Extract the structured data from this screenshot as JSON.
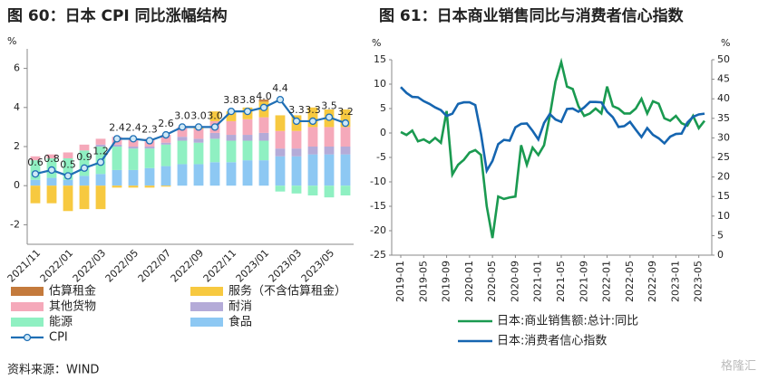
{
  "chart_data": [
    {
      "type": "bar",
      "stacked": true,
      "title": "图 60：日本 CPI 同比涨幅结构",
      "y_label": "%",
      "categories": [
        "2021/11",
        null,
        "2022/01",
        null,
        "2022/03",
        null,
        "2022/05",
        null,
        "2022/07",
        null,
        "2022/09",
        null,
        "2022/11",
        null,
        "2023/01",
        null,
        "2023/03",
        null,
        "2023/05",
        null
      ],
      "ylim": [
        -3,
        7
      ],
      "yticks": [
        -2,
        0,
        2,
        4,
        6
      ],
      "series": [
        {
          "name": "估算租金",
          "color": "#c47a3c",
          "values": [
            0,
            0,
            0,
            0,
            0,
            0,
            0,
            0,
            0,
            0,
            0,
            0,
            0,
            0,
            0.1,
            0,
            0,
            0,
            0,
            0
          ]
        },
        {
          "name": "服务（不含估算租金）",
          "color": "#f7c940",
          "values": [
            -0.9,
            -0.9,
            -1.3,
            -1.2,
            -1.2,
            -0.1,
            -0.1,
            -0.1,
            -0.05,
            0,
            0.1,
            0.5,
            0.5,
            0.6,
            0.8,
            0.8,
            0.8,
            1.0,
            0.9,
            0.9
          ]
        },
        {
          "name": "其他货物",
          "color": "#f5a9ba",
          "values": [
            0.2,
            0.2,
            0.3,
            0.3,
            0.3,
            0.4,
            0.4,
            0.4,
            0.4,
            0.5,
            0.5,
            0.6,
            0.7,
            0.8,
            0.8,
            0.9,
            0.9,
            1.0,
            1.0,
            1.0
          ]
        },
        {
          "name": "耐消",
          "color": "#b4abd8",
          "values": [
            0,
            0,
            0,
            0,
            0.1,
            0.1,
            0.1,
            0.1,
            0.1,
            0.2,
            0.2,
            0.3,
            0.3,
            0.3,
            0.4,
            0.4,
            0.4,
            0.4,
            0.4,
            0.4
          ]
        },
        {
          "name": "能源",
          "color": "#8ff0c2",
          "values": [
            1.0,
            1.0,
            1.1,
            1.3,
            1.4,
            1.2,
            1.1,
            1.0,
            1.1,
            1.2,
            1.1,
            1.2,
            1.1,
            1.0,
            1.0,
            -0.3,
            -0.4,
            -0.5,
            -0.6,
            -0.5
          ]
        },
        {
          "name": "食品",
          "color": "#8dc8f3",
          "values": [
            0.3,
            0.4,
            0.3,
            0.5,
            0.6,
            0.8,
            0.8,
            0.9,
            1.0,
            1.1,
            1.1,
            1.2,
            1.2,
            1.3,
            1.3,
            1.5,
            1.5,
            1.6,
            1.6,
            1.6
          ]
        },
        {
          "name": "CPI",
          "type": "line",
          "color": "#1f6fb5",
          "values": [
            0.6,
            0.8,
            0.5,
            0.9,
            1.2,
            2.4,
            2.4,
            2.3,
            2.6,
            3.0,
            3.0,
            3.0,
            3.8,
            3.8,
            4.0,
            4.4,
            3.3,
            3.3,
            3.5,
            3.2
          ],
          "value_labels": [
            "0.6",
            "0.8",
            "0.5",
            "0.9",
            "1.2",
            "2.4",
            "2.4",
            "2.3",
            "2.6",
            "3.0",
            "3.0",
            "3.0",
            "3.8",
            "3.8",
            "4.0",
            "4.4",
            "3.3",
            "3.3",
            "3.5",
            "3.2"
          ]
        }
      ]
    },
    {
      "type": "line",
      "title": "图 61：日本商业销售同比与消费者信心指数",
      "y_label": "%",
      "y2_label": "%",
      "categories": [
        "2019-01",
        null,
        null,
        null,
        "2019-05",
        null,
        null,
        null,
        "2019-09",
        null,
        null,
        null,
        "2020-01",
        null,
        null,
        null,
        "2020-05",
        null,
        null,
        null,
        "2020-09",
        null,
        null,
        null,
        "2021-01",
        null,
        null,
        null,
        "2021-05",
        null,
        null,
        null,
        "2021-09",
        null,
        null,
        null,
        "2022-01",
        null,
        null,
        null,
        "2022-05",
        null,
        null,
        null,
        "2022-09",
        null,
        null,
        null,
        "2023-01",
        null,
        null,
        null,
        "2023-05",
        null
      ],
      "ylim": [
        -25,
        15
      ],
      "yticks": [
        -25,
        -20,
        -15,
        -10,
        -5,
        0,
        5,
        10,
        15
      ],
      "y2lim": [
        0,
        50
      ],
      "y2ticks": [
        0,
        5,
        10,
        15,
        20,
        25,
        30,
        35,
        40,
        45,
        50
      ],
      "series": [
        {
          "name": "日本:商业销售额:总计:同比",
          "color": "#1a9a50",
          "axis": "y",
          "values": [
            0.2,
            -0.4,
            0.5,
            -1.7,
            -1.3,
            -2.0,
            -1.0,
            -2.0,
            4.5,
            -8.5,
            -6.5,
            -5.5,
            -4.0,
            -3.5,
            -4.5,
            -15,
            -21.5,
            -13,
            -13.5,
            -13.2,
            -13,
            -2.5,
            -6.5,
            -3,
            -4.5,
            -2.5,
            3.5,
            10.5,
            14.5,
            9.5,
            9,
            5.5,
            3.5,
            4,
            5,
            4,
            9.5,
            5.5,
            5,
            4,
            4,
            5,
            7,
            4,
            6.5,
            6,
            3,
            2.5,
            3.5,
            2,
            1.5,
            3.5,
            1,
            2.5
          ]
        },
        {
          "name": "日本:消费者信心指数",
          "color": "#1565b0",
          "axis": "y2",
          "values": [
            43,
            41.5,
            40.5,
            40.4,
            39.4,
            38.7,
            37.8,
            37.1,
            35.6,
            36.2,
            38.7,
            39.1,
            39.1,
            38.4,
            31,
            21.6,
            24.1,
            28.4,
            29.5,
            29.3,
            32.7,
            33.6,
            33.7,
            31.8,
            29.6,
            33.8,
            36.1,
            34.7,
            34.1,
            37.4,
            37.5,
            36.7,
            37.8,
            39.2,
            39.2,
            39.1,
            36.7,
            35.3,
            32.8,
            33.0,
            34.1,
            32.1,
            30.2,
            32.5,
            30.8,
            29.9,
            28.6,
            30.3,
            31.0,
            31.1,
            33.9,
            35.4,
            36.0,
            36.2
          ]
        }
      ]
    }
  ],
  "source": "资料来源：WIND",
  "watermark": "格隆汇"
}
